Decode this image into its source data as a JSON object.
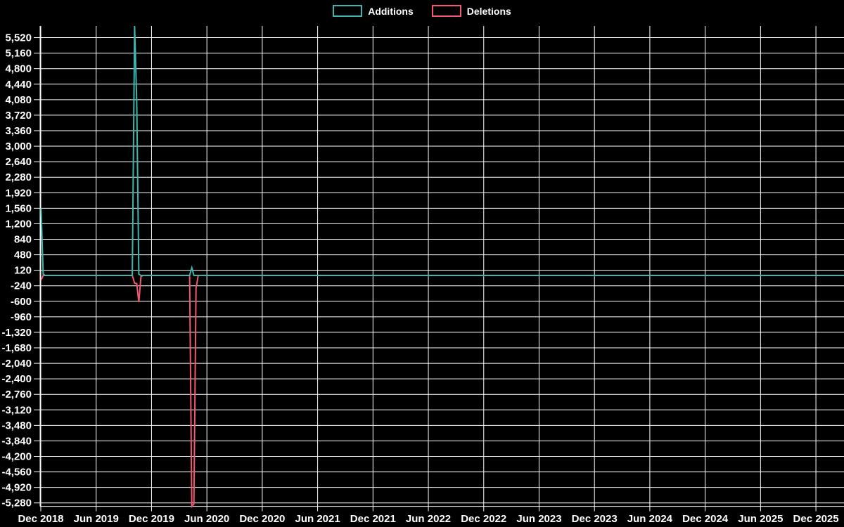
{
  "page": {
    "background_color": "#000000",
    "grid_color": "#ffffff",
    "text_color": "#ffffff"
  },
  "legend": {
    "items": [
      {
        "label": "Additions",
        "color": "#3fb5af"
      },
      {
        "label": "Deletions",
        "color": "#f2586f"
      }
    ]
  },
  "chart_data": {
    "type": "line",
    "title": "",
    "xlabel": "",
    "ylabel": "",
    "grid": true,
    "legend_position": "top-center",
    "background": "#000000",
    "x_axis": {
      "start_date": "2018-12-01",
      "end_date": "2026-03-10",
      "months_per_tick": 6,
      "tick_labels": [
        "Dec 2018",
        "Jun 2019",
        "Dec 2019",
        "Jun 2020",
        "Dec 2020",
        "Jun 2021",
        "Dec 2021",
        "Jun 2022",
        "Dec 2022",
        "Jun 2023",
        "Dec 2023",
        "Jun 2024",
        "Dec 2024",
        "Jun 2025",
        "Dec 2025"
      ]
    },
    "y_axis": {
      "tick_step": 360,
      "tick_values": [
        5520,
        5160,
        4800,
        4440,
        4080,
        3720,
        3360,
        3000,
        2640,
        2280,
        1920,
        1560,
        1200,
        840,
        480,
        120,
        -240,
        -600,
        -960,
        -1320,
        -1680,
        -2040,
        -2400,
        -2760,
        -3120,
        -3480,
        -3840,
        -4200,
        -4560,
        -4920,
        -5280
      ],
      "tick_labels": [
        "5,520",
        "5,160",
        "4,800",
        "4,440",
        "4,080",
        "3,720",
        "3,360",
        "3,000",
        "2,640",
        "2,280",
        "1,920",
        "1,560",
        "1,200",
        "840",
        "480",
        "120",
        "-240",
        "-600",
        "-960",
        "-1,320",
        "-1,680",
        "-2,040",
        "-2,400",
        "-2,760",
        "-3,120",
        "-3,480",
        "-3,840",
        "-4,200",
        "-4,560",
        "-4,920",
        "-5,280"
      ]
    },
    "ylim": [
      -5360,
      5790
    ],
    "series": [
      {
        "name": "Deletions",
        "color": "#f2586f",
        "points": [
          [
            "2018-12-02",
            -110
          ],
          [
            "2018-12-09",
            0
          ],
          [
            "2019-09-29",
            0
          ],
          [
            "2019-10-06",
            -180
          ],
          [
            "2019-10-13",
            -190
          ],
          [
            "2019-10-20",
            -620
          ],
          [
            "2019-10-27",
            -30
          ],
          [
            "2019-11-03",
            0
          ],
          [
            "2020-04-05",
            0
          ],
          [
            "2020-04-12",
            -5360
          ],
          [
            "2020-04-19",
            -5300
          ],
          [
            "2020-04-26",
            -300
          ],
          [
            "2020-05-03",
            0
          ],
          [
            "2026-03-10",
            0
          ]
        ]
      },
      {
        "name": "Additions",
        "color": "#3fb5af",
        "points": [
          [
            "2018-12-02",
            1560
          ],
          [
            "2018-12-09",
            30
          ],
          [
            "2018-12-16",
            0
          ],
          [
            "2019-09-29",
            0
          ],
          [
            "2019-10-06",
            5790
          ],
          [
            "2019-10-13",
            4030
          ],
          [
            "2019-10-20",
            30
          ],
          [
            "2019-10-27",
            0
          ],
          [
            "2020-04-05",
            0
          ],
          [
            "2020-04-12",
            180
          ],
          [
            "2020-04-19",
            0
          ],
          [
            "2026-03-10",
            0
          ]
        ]
      }
    ]
  }
}
